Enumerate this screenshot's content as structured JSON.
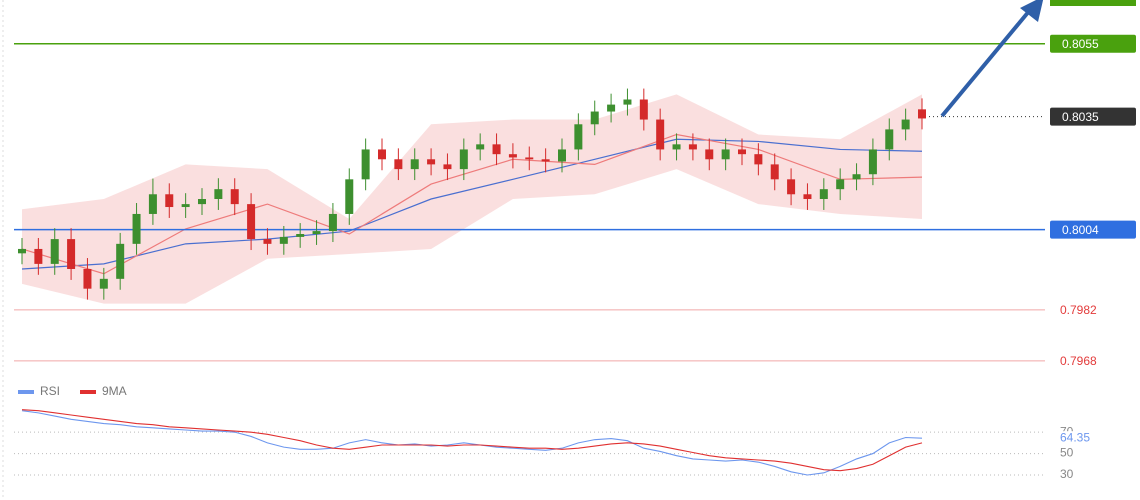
{
  "chart_data": {
    "type": "candlestick",
    "ylim": [
      0.796,
      0.8067
    ],
    "up_color": "#3d8f2f",
    "down_color": "#d42a2a",
    "open": [
      0.79975,
      0.79987,
      0.79946,
      0.80014,
      0.79932,
      0.79878,
      0.79905,
      0.80001,
      0.80083,
      0.80137,
      0.80102,
      0.8011,
      0.80124,
      0.80151,
      0.8011,
      0.80014,
      0.80001,
      0.8002,
      0.80028,
      0.80036,
      0.80083,
      0.80178,
      0.8026,
      0.80233,
      0.80206,
      0.80233,
      0.80219,
      0.80206,
      0.8026,
      0.80274,
      0.80247,
      0.80238,
      0.80233,
      0.80227,
      0.8026,
      0.80329,
      0.80364,
      0.80383,
      0.80397,
      0.80342,
      0.8026,
      0.80274,
      0.8026,
      0.80233,
      0.8026,
      0.80247,
      0.80219,
      0.80178,
      0.80137,
      0.80124,
      0.80151,
      0.80178,
      0.80192,
      0.8026,
      0.80315,
      0.8037
    ],
    "high": [
      0.80017,
      0.80017,
      0.80044,
      0.80044,
      0.79962,
      0.79935,
      0.80031,
      0.80113,
      0.8018,
      0.80167,
      0.8014,
      0.80154,
      0.80181,
      0.80181,
      0.8014,
      0.80044,
      0.8005,
      0.80058,
      0.80066,
      0.80113,
      0.80208,
      0.8029,
      0.8029,
      0.80263,
      0.80263,
      0.80263,
      0.80249,
      0.8029,
      0.80304,
      0.80304,
      0.80277,
      0.80268,
      0.80263,
      0.8029,
      0.80359,
      0.80394,
      0.80413,
      0.80427,
      0.80427,
      0.80372,
      0.80304,
      0.80304,
      0.8029,
      0.8029,
      0.8029,
      0.80277,
      0.80249,
      0.80208,
      0.80167,
      0.80181,
      0.80208,
      0.80222,
      0.8029,
      0.80345,
      0.80372,
      0.804
    ],
    "low": [
      0.79945,
      0.79916,
      0.79916,
      0.79902,
      0.79848,
      0.79848,
      0.79875,
      0.79971,
      0.80053,
      0.80072,
      0.80072,
      0.8008,
      0.80094,
      0.8008,
      0.79984,
      0.79971,
      0.79971,
      0.7999,
      0.79998,
      0.80006,
      0.80053,
      0.80148,
      0.80203,
      0.80176,
      0.80176,
      0.80189,
      0.80176,
      0.80176,
      0.8023,
      0.80217,
      0.80208,
      0.80203,
      0.80197,
      0.80197,
      0.8023,
      0.80299,
      0.80334,
      0.80353,
      0.80312,
      0.8023,
      0.8023,
      0.8023,
      0.80203,
      0.80203,
      0.80217,
      0.80189,
      0.80148,
      0.80107,
      0.80094,
      0.80094,
      0.80121,
      0.80148,
      0.80162,
      0.8023,
      0.80285,
      0.80315
    ],
    "close": [
      0.79987,
      0.79946,
      0.80014,
      0.79932,
      0.79878,
      0.79905,
      0.80001,
      0.80083,
      0.80137,
      0.80102,
      0.8011,
      0.80124,
      0.80151,
      0.8011,
      0.80014,
      0.80001,
      0.8002,
      0.80028,
      0.80036,
      0.80083,
      0.80178,
      0.8026,
      0.80233,
      0.80206,
      0.80233,
      0.80219,
      0.80206,
      0.8026,
      0.80274,
      0.80247,
      0.80238,
      0.80233,
      0.80227,
      0.8026,
      0.80329,
      0.80364,
      0.80383,
      0.80397,
      0.80342,
      0.8026,
      0.80274,
      0.8026,
      0.80233,
      0.8026,
      0.80247,
      0.80219,
      0.80178,
      0.80137,
      0.80124,
      0.80151,
      0.80178,
      0.80192,
      0.8026,
      0.80315,
      0.80342,
      0.80345
    ],
    "overlays": {
      "x": [
        0,
        5,
        10,
        15,
        20,
        25,
        30,
        35,
        40,
        45,
        50,
        55
      ],
      "band": {
        "color": "#f6c9c9",
        "upper": [
          0.80096,
          0.80124,
          0.80219,
          0.80206,
          0.80069,
          0.80329,
          0.80342,
          0.80342,
          0.80411,
          0.80301,
          0.80288,
          0.80411
        ],
        "lower": [
          0.79891,
          0.79837,
          0.79837,
          0.7996,
          0.79973,
          0.79987,
          0.80124,
          0.80137,
          0.80206,
          0.8011,
          0.80083,
          0.80069
        ]
      },
      "ma_slow": {
        "color": "#4a6fd0",
        "values": [
          0.79932,
          0.79946,
          0.80001,
          0.80014,
          0.80036,
          0.80124,
          0.80178,
          0.80233,
          0.80288,
          0.80282,
          0.8026,
          0.80255
        ]
      },
      "ma_fast": {
        "color": "#ee7b7b",
        "values": [
          0.79987,
          0.79919,
          0.80042,
          0.8011,
          0.80028,
          0.80165,
          0.80233,
          0.80219,
          0.80301,
          0.8026,
          0.80178,
          0.80184
        ]
      }
    },
    "levels": [
      {
        "value": 0.8055,
        "color": "#4aa10e",
        "label_style": "box",
        "line_style": "solid"
      },
      {
        "value": 0.8035,
        "color": "#333333",
        "label_style": "box",
        "line_style": "dotted"
      },
      {
        "value": 0.8004,
        "color": "#2f6fe0",
        "label_style": "box",
        "line_style": "solid"
      },
      {
        "value": 0.7982,
        "color": "#e33b3b",
        "label_style": "text",
        "line_style": "faint"
      },
      {
        "value": 0.7968,
        "color": "#e33b3b",
        "label_style": "text",
        "line_style": "faint"
      }
    ],
    "rsi": {
      "ylim": [
        16,
        100
      ],
      "yticks": [
        30,
        50,
        70
      ],
      "grid": true,
      "series": [
        {
          "name": "RSI",
          "color": "#6d97ee",
          "values": [
            90,
            88,
            85,
            82,
            80,
            78,
            77,
            75,
            74,
            73,
            72,
            71,
            71,
            70,
            66,
            60,
            56,
            54,
            54,
            55,
            60,
            63,
            60,
            58,
            59,
            57,
            58,
            60,
            58,
            56,
            55,
            54,
            53,
            55,
            60,
            63,
            64,
            62,
            55,
            52,
            48,
            45,
            44,
            43,
            44,
            42,
            38,
            33,
            30,
            32,
            38,
            45,
            50,
            60,
            65,
            64.35
          ]
        },
        {
          "name": "9MA",
          "color": "#e03030",
          "values": [
            91,
            90,
            88,
            86,
            84,
            82,
            80,
            78,
            77,
            75,
            74,
            73,
            72,
            71,
            70,
            68,
            65,
            62,
            58,
            55,
            54,
            56,
            58,
            58,
            58,
            58,
            57,
            58,
            58,
            57,
            56,
            55,
            55,
            54,
            55,
            57,
            59,
            60,
            59,
            57,
            54,
            51,
            48,
            46,
            45,
            44,
            43,
            41,
            38,
            35,
            34,
            36,
            40,
            48,
            56,
            60
          ]
        }
      ]
    }
  }
}
